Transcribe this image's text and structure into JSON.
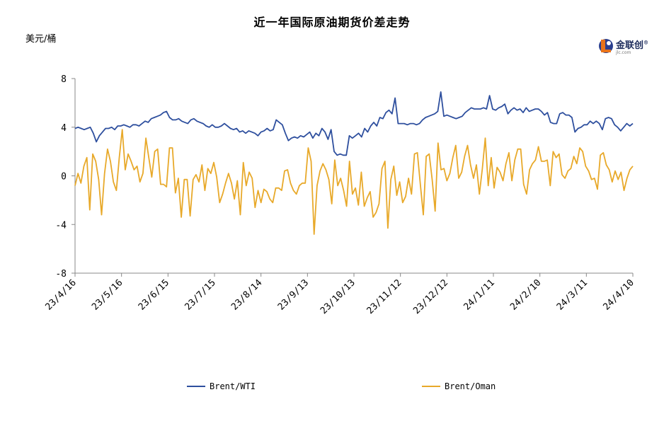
{
  "chart_data": {
    "type": "line",
    "title": "近一年国际原油期货价差走势",
    "ylabel": "美元/桶",
    "ylim": [
      -8,
      8
    ],
    "yticks": [
      "8",
      "4",
      "0",
      "-4",
      "-8"
    ],
    "xlabels": [
      "23/4/16",
      "23/5/16",
      "23/6/15",
      "23/7/15",
      "23/8/14",
      "23/9/13",
      "23/10/13",
      "23/11/12",
      "23/12/12",
      "24/1/11",
      "24/2/10",
      "24/3/11",
      "24/4/10"
    ],
    "grid": false,
    "legend": "bottom",
    "series": [
      {
        "name": "Brent/WTI",
        "color": "#2e4f9e",
        "values": [
          3.9,
          4.0,
          3.9,
          3.8,
          3.9,
          4.0,
          3.5,
          2.8,
          3.3,
          3.6,
          3.9,
          3.9,
          4.0,
          3.8,
          4.1,
          4.1,
          4.2,
          4.1,
          4.0,
          4.2,
          4.2,
          4.1,
          4.3,
          4.5,
          4.4,
          4.7,
          4.8,
          4.9,
          5.0,
          5.2,
          5.3,
          4.8,
          4.6,
          4.6,
          4.7,
          4.5,
          4.4,
          4.3,
          4.6,
          4.7,
          4.5,
          4.4,
          4.3,
          4.1,
          4.0,
          4.2,
          4.0,
          4.0,
          4.1,
          4.3,
          4.1,
          3.9,
          3.8,
          3.9,
          3.6,
          3.7,
          3.5,
          3.7,
          3.6,
          3.5,
          3.3,
          3.6,
          3.7,
          3.9,
          3.7,
          3.8,
          4.6,
          4.4,
          4.2,
          3.5,
          2.9,
          3.1,
          3.2,
          3.1,
          3.3,
          3.2,
          3.4,
          3.6,
          3.1,
          3.5,
          3.3,
          3.9,
          3.6,
          3.0,
          3.8,
          2.0,
          1.7,
          1.8,
          1.7,
          1.7,
          3.3,
          3.1,
          3.3,
          3.5,
          3.2,
          3.9,
          3.6,
          4.1,
          4.4,
          4.1,
          4.8,
          4.7,
          5.2,
          5.4,
          5.1,
          6.4,
          4.3,
          4.3,
          4.3,
          4.2,
          4.3,
          4.3,
          4.2,
          4.3,
          4.6,
          4.8,
          4.9,
          5.0,
          5.1,
          5.3,
          6.9,
          4.9,
          5.0,
          4.9,
          4.8,
          4.7,
          4.8,
          4.9,
          5.2,
          5.4,
          5.6,
          5.5,
          5.5,
          5.5,
          5.6,
          5.5,
          6.6,
          5.5,
          5.4,
          5.6,
          5.7,
          5.9,
          5.1,
          5.4,
          5.6,
          5.4,
          5.5,
          5.2,
          5.6,
          5.3,
          5.4,
          5.5,
          5.5,
          5.3,
          5.0,
          5.2,
          4.4,
          4.3,
          4.3,
          5.1,
          5.2,
          5.0,
          5.0,
          4.8,
          3.6,
          3.9,
          4.0,
          4.2,
          4.2,
          4.5,
          4.3,
          4.5,
          4.3,
          3.8,
          4.7,
          4.8,
          4.7,
          4.2,
          4.0,
          3.7,
          4.0,
          4.3,
          4.1,
          4.3
        ]
      },
      {
        "name": "Brent/Oman",
        "color": "#e8a92a",
        "values": [
          -0.8,
          0.2,
          -0.6,
          0.8,
          1.5,
          -2.8,
          1.8,
          1.2,
          -0.3,
          -3.2,
          0.2,
          2.2,
          1.2,
          -0.5,
          -1.2,
          1.5,
          3.8,
          0.5,
          1.8,
          1.2,
          0.5,
          0.8,
          -0.5,
          0.2,
          3.1,
          1.5,
          -0.1,
          2.0,
          2.2,
          -0.7,
          -0.7,
          -0.9,
          2.3,
          2.3,
          -1.4,
          -0.2,
          -3.4,
          -0.3,
          -0.3,
          -3.3,
          -0.3,
          0.1,
          -0.5,
          0.9,
          -1.2,
          0.6,
          0.2,
          1.1,
          -0.1,
          -2.2,
          -1.5,
          -0.6,
          0.2,
          -0.6,
          -1.9,
          -0.4,
          -3.2,
          1.1,
          -0.8,
          0.3,
          -0.2,
          -2.6,
          -1.2,
          -2.2,
          -1.1,
          -1.3,
          -1.9,
          -2.2,
          -1.0,
          -1.0,
          -1.2,
          0.4,
          0.5,
          -0.6,
          -1.2,
          -1.5,
          -0.8,
          -0.6,
          -0.6,
          2.3,
          1.2,
          -4.8,
          -0.8,
          0.4,
          1.0,
          0.5,
          -0.3,
          -2.3,
          1.3,
          -0.8,
          -0.2,
          -1.2,
          -2.5,
          1.2,
          -1.5,
          -1.0,
          -2.4,
          0.3,
          -2.5,
          -1.8,
          -1.3,
          -3.4,
          -3.0,
          -2.3,
          0.6,
          1.2,
          -4.3,
          -0.3,
          0.8,
          -1.6,
          -0.5,
          -2.2,
          -1.7,
          -0.2,
          -1.5,
          1.8,
          1.9,
          -0.7,
          -3.2,
          1.6,
          1.8,
          -0.3,
          -2.9,
          2.7,
          0.5,
          0.6,
          -0.4,
          0.2,
          1.5,
          2.5,
          -0.2,
          0.3,
          1.6,
          2.5,
          0.9,
          -0.2,
          0.9,
          -1.5,
          0.6,
          3.1,
          -0.8,
          1.5,
          -1.0,
          0.7,
          0.3,
          -0.4,
          1.0,
          1.9,
          -0.4,
          1.3,
          2.2,
          2.2,
          -0.7,
          -1.5,
          0.5,
          1.0,
          1.3,
          2.4,
          1.2,
          1.2,
          1.3,
          -0.8,
          2.0,
          1.5,
          1.8,
          0.1,
          -0.2,
          0.4,
          0.6,
          1.6,
          1.0,
          2.3,
          2.0,
          0.8,
          0.4,
          -0.3,
          -0.2,
          -1.1,
          1.7,
          1.9,
          0.9,
          0.5,
          -0.5,
          0.4,
          -0.3,
          0.3,
          -1.2,
          -0.2,
          0.5,
          0.8
        ]
      }
    ]
  },
  "logo": {
    "name": "金联创",
    "mark": "®",
    "sub": "jlc.com"
  }
}
